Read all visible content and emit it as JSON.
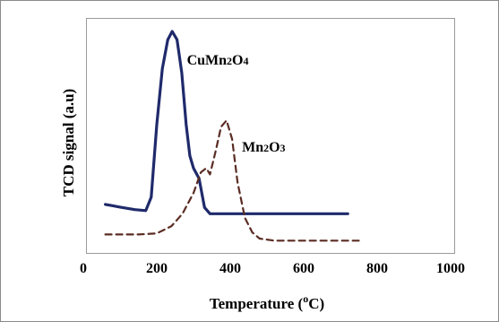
{
  "chart_data": {
    "type": "line",
    "title": "",
    "xlabel": {
      "prefix": "Temperature (",
      "sup": "o",
      "suffix": "C)"
    },
    "ylabel": "TCD signal (a.u)",
    "xlim": [
      0,
      1000
    ],
    "ylim": [
      0,
      1
    ],
    "x_ticks": [
      0,
      200,
      400,
      600,
      800,
      1000
    ],
    "x_tick_labels": [
      "0",
      "200",
      "400",
      "600",
      "800",
      "1000"
    ],
    "grid": false,
    "legend": "none",
    "series": [
      {
        "name": "CuMn2O4",
        "label_parts": [
          {
            "t": "CuMn",
            "sub": false
          },
          {
            "t": "2",
            "sub": true
          },
          {
            "t": "O",
            "sub": false
          },
          {
            "t": "4",
            "sub": true
          }
        ],
        "style": "solid",
        "color": "#1f2a6b",
        "x": [
          60,
          100,
          140,
          170,
          185,
          200,
          215,
          230,
          242,
          255,
          268,
          280,
          290,
          300,
          315,
          330,
          345,
          360,
          400,
          500,
          600,
          720
        ],
        "y": [
          0.165,
          0.152,
          0.14,
          0.135,
          0.2,
          0.55,
          0.82,
          0.96,
          1.0,
          0.96,
          0.8,
          0.55,
          0.4,
          0.34,
          0.29,
          0.15,
          0.12,
          0.12,
          0.12,
          0.12,
          0.12,
          0.12
        ],
        "label_at": [
          282,
          0.84
        ]
      },
      {
        "name": "Mn2O3",
        "label_parts": [
          {
            "t": "Mn",
            "sub": false
          },
          {
            "t": "2",
            "sub": true
          },
          {
            "t": "O",
            "sub": false
          },
          {
            "t": "3",
            "sub": true
          }
        ],
        "style": "dashed",
        "color": "#5a2c23",
        "x": [
          60,
          150,
          200,
          240,
          270,
          300,
          320,
          335,
          345,
          360,
          375,
          390,
          405,
          420,
          440,
          460,
          480,
          520,
          600,
          700,
          750
        ],
        "y": [
          0.02,
          0.02,
          0.025,
          0.06,
          0.12,
          0.22,
          0.32,
          0.34,
          0.31,
          0.42,
          0.54,
          0.57,
          0.48,
          0.27,
          0.1,
          0.03,
          0.0,
          -0.01,
          -0.01,
          -0.01,
          -0.01
        ],
        "label_at": [
          432,
          0.42
        ]
      }
    ]
  }
}
